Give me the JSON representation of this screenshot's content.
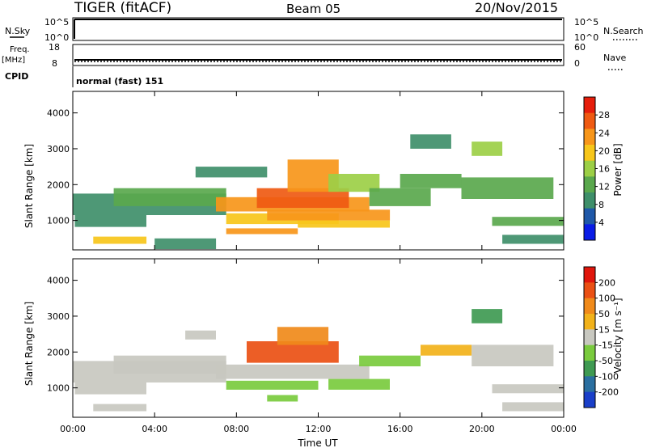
{
  "header": {
    "station": "TIGER (fitACF)",
    "beam": "Beam 05",
    "date": "20/Nov/2015"
  },
  "top_panels": {
    "nsky_label": "N.Sky",
    "nsky_ticks": [
      "10^5",
      "10^0"
    ],
    "nsearch_label": "N.Search",
    "nsearch_ticks": [
      "10^5",
      "10^0"
    ],
    "freq_label": "Freq.",
    "freq_unit": "[MHz]",
    "freq_ticks": [
      "18",
      "8"
    ],
    "nave_label": "Nave",
    "nave_ticks": [
      "60",
      "0"
    ],
    "cpid_label": "CPID",
    "cpid_value": "normal (fast) 151"
  },
  "colors": {
    "power_scale": [
      "#0a1ce6",
      "#1f58a8",
      "#3f8f6a",
      "#5aa84d",
      "#9ccf46",
      "#f7c61a",
      "#f7961a",
      "#ef5a12",
      "#e61e0c"
    ],
    "velocity_scale": [
      "#1a3fc9",
      "#2a6fa0",
      "#3f9a52",
      "#7acb3e",
      "#c8c8c0",
      "#f2b21a",
      "#f08a1a",
      "#ea5014",
      "#e0160c"
    ]
  },
  "chart_data": [
    {
      "type": "heatmap",
      "name": "power-panel",
      "ylabel": "Slant Range [km]",
      "xlabel": "",
      "x_ticks": [
        "00:00",
        "04:00",
        "08:00",
        "12:00",
        "16:00",
        "20:00",
        "00:00"
      ],
      "x_range_hours": [
        0,
        24
      ],
      "y_ticks": [
        1000,
        2000,
        3000,
        4000
      ],
      "ylim": [
        180,
        4600
      ],
      "colorbar": {
        "label": "Power [dB]",
        "ticks": [
          "28",
          "24",
          "20",
          "16",
          "12",
          "8",
          "4"
        ],
        "range": [
          0,
          32
        ]
      },
      "regions": [
        {
          "t0": 0.0,
          "t1": 7.5,
          "r0": 1150,
          "r1": 1750,
          "value": 10
        },
        {
          "t0": 0.1,
          "t1": 3.6,
          "r0": 820,
          "r1": 1150,
          "value": 10
        },
        {
          "t0": 2.0,
          "t1": 7.5,
          "r0": 1400,
          "r1": 1900,
          "value": 12
        },
        {
          "t0": 1.0,
          "t1": 3.6,
          "r0": 350,
          "r1": 550,
          "value": 20
        },
        {
          "t0": 7.0,
          "t1": 14.5,
          "r0": 1250,
          "r1": 1650,
          "value": 24
        },
        {
          "t0": 9.0,
          "t1": 13.5,
          "r0": 1350,
          "r1": 1900,
          "value": 26
        },
        {
          "t0": 7.5,
          "t1": 13.0,
          "r0": 900,
          "r1": 1200,
          "value": 20
        },
        {
          "t0": 9.5,
          "t1": 15.5,
          "r0": 1000,
          "r1": 1300,
          "value": 22
        },
        {
          "t0": 7.5,
          "t1": 11.0,
          "r0": 620,
          "r1": 780,
          "value": 22
        },
        {
          "t0": 11.0,
          "t1": 15.5,
          "r0": 800,
          "r1": 1000,
          "value": 20
        },
        {
          "t0": 10.5,
          "t1": 13.0,
          "r0": 1800,
          "r1": 2700,
          "value": 24
        },
        {
          "t0": 6.0,
          "t1": 9.5,
          "r0": 2200,
          "r1": 2500,
          "value": 10
        },
        {
          "t0": 12.5,
          "t1": 15.0,
          "r0": 1800,
          "r1": 2300,
          "value": 16
        },
        {
          "t0": 14.5,
          "t1": 17.5,
          "r0": 1400,
          "r1": 1900,
          "value": 12
        },
        {
          "t0": 16.0,
          "t1": 19.0,
          "r0": 1900,
          "r1": 2300,
          "value": 14
        },
        {
          "t0": 19.0,
          "t1": 23.5,
          "r0": 1600,
          "r1": 2200,
          "value": 12
        },
        {
          "t0": 20.5,
          "t1": 24.0,
          "r0": 850,
          "r1": 1100,
          "value": 12
        },
        {
          "t0": 21.0,
          "t1": 24.0,
          "r0": 350,
          "r1": 600,
          "value": 10
        },
        {
          "t0": 19.5,
          "t1": 21.0,
          "r0": 2800,
          "r1": 3200,
          "value": 16
        },
        {
          "t0": 16.5,
          "t1": 18.5,
          "r0": 3000,
          "r1": 3400,
          "value": 8
        },
        {
          "t0": 4.0,
          "t1": 7.0,
          "r0": 200,
          "r1": 500,
          "value": 8
        }
      ]
    },
    {
      "type": "heatmap",
      "name": "velocity-panel",
      "ylabel": "Slant Range [km]",
      "xlabel": "Time UT",
      "x_ticks": [
        "00:00",
        "04:00",
        "08:00",
        "12:00",
        "16:00",
        "20:00",
        "00:00"
      ],
      "x_range_hours": [
        0,
        24
      ],
      "y_ticks": [
        1000,
        2000,
        3000,
        4000
      ],
      "ylim": [
        180,
        4600
      ],
      "colorbar": {
        "label": "Velocity [m s⁻¹]",
        "ticks": [
          "200",
          "100",
          "50",
          "15",
          "-15",
          "-50",
          "-100",
          "-200"
        ],
        "range": [
          -250,
          250
        ]
      },
      "regions": [
        {
          "t0": 0.0,
          "t1": 7.5,
          "r0": 1150,
          "r1": 1750,
          "value": 0
        },
        {
          "t0": 2.0,
          "t1": 7.5,
          "r0": 1400,
          "r1": 1900,
          "value": 0
        },
        {
          "t0": 0.1,
          "t1": 3.6,
          "r0": 820,
          "r1": 1150,
          "value": 0
        },
        {
          "t0": 1.0,
          "t1": 3.6,
          "r0": 350,
          "r1": 550,
          "value": 0
        },
        {
          "t0": 7.0,
          "t1": 14.5,
          "r0": 1250,
          "r1": 1650,
          "value": 0
        },
        {
          "t0": 7.5,
          "t1": 12.0,
          "r0": 950,
          "r1": 1200,
          "value": -30
        },
        {
          "t0": 12.5,
          "t1": 15.5,
          "r0": 950,
          "r1": 1250,
          "value": -30
        },
        {
          "t0": 9.5,
          "t1": 11.0,
          "r0": 620,
          "r1": 800,
          "value": -30
        },
        {
          "t0": 8.5,
          "t1": 13.0,
          "r0": 1700,
          "r1": 2300,
          "value": 150
        },
        {
          "t0": 10.0,
          "t1": 12.5,
          "r0": 2200,
          "r1": 2700,
          "value": 120
        },
        {
          "t0": 14.0,
          "t1": 17.0,
          "r0": 1600,
          "r1": 1900,
          "value": -80
        },
        {
          "t0": 17.0,
          "t1": 19.5,
          "r0": 1900,
          "r1": 2200,
          "value": 30
        },
        {
          "t0": 19.5,
          "t1": 23.5,
          "r0": 1600,
          "r1": 2200,
          "value": 0
        },
        {
          "t0": 20.5,
          "t1": 24.0,
          "r0": 850,
          "r1": 1100,
          "value": 0
        },
        {
          "t0": 19.5,
          "t1": 21.0,
          "r0": 2800,
          "r1": 3200,
          "value": -120
        },
        {
          "t0": 5.5,
          "t1": 7.0,
          "r0": 2350,
          "r1": 2600,
          "value": 0
        },
        {
          "t0": 21.0,
          "t1": 24.0,
          "r0": 350,
          "r1": 600,
          "value": 0
        }
      ]
    }
  ]
}
